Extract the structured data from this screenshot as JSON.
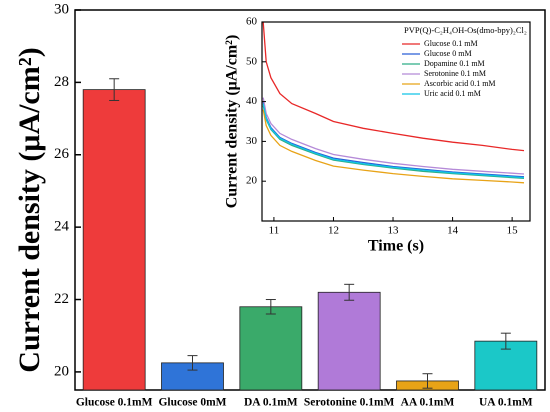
{
  "chart_data": [
    {
      "type": "bar",
      "y_label": "Current density (μA/cm²)",
      "categories": [
        "Glucose 0.1mM",
        "Glucose 0mM",
        "DA 0.1mM",
        "Serotonine 0.1mM",
        "AA 0.1mM",
        "UA 0.1mM"
      ],
      "values": [
        27.8,
        20.25,
        21.8,
        22.2,
        19.75,
        20.85
      ],
      "errors": [
        0.3,
        0.2,
        0.2,
        0.22,
        0.2,
        0.22
      ],
      "colors": [
        "#ee3b3b",
        "#2f74d8",
        "#3aaa6a",
        "#b07ad8",
        "#e8a317",
        "#1bc8c8"
      ],
      "ylim": [
        19.5,
        30
      ],
      "yticks": [
        20,
        22,
        24,
        26,
        28,
        30
      ]
    },
    {
      "type": "line",
      "legend_title": "PVP(Q)-C₂H₄OH-Os(dmo-bpy)₂Cl₂",
      "x_label": "Time (s)",
      "y_label": "Current density (μA/cm²)",
      "x": [
        10.82,
        10.87,
        10.95,
        11.1,
        11.3,
        11.7,
        12,
        12.5,
        13,
        13.5,
        14,
        14.5,
        15,
        15.2
      ],
      "series": [
        {
          "name": "Glucose 0.1 mM",
          "color": "#e82828",
          "values": [
            60,
            50,
            46,
            42,
            39.5,
            37,
            35,
            33.3,
            32,
            30.8,
            29.8,
            29,
            28,
            27.7
          ]
        },
        {
          "name": "Glucose 0 mM",
          "color": "#2a5fd6",
          "values": [
            40,
            36,
            33.5,
            31,
            29.5,
            27.2,
            25.8,
            24.7,
            23.7,
            23,
            22.3,
            21.8,
            21.3,
            21.1
          ]
        },
        {
          "name": "Dopamine 0.1 mM",
          "color": "#2fae86",
          "values": [
            39,
            35.5,
            33,
            30.5,
            29,
            26.8,
            25.3,
            24.2,
            23.3,
            22.5,
            21.9,
            21.4,
            20.9,
            20.7
          ]
        },
        {
          "name": "Serotonine 0.1 mM",
          "color": "#b58ad8",
          "values": [
            41,
            37,
            34.5,
            32,
            30.5,
            28.2,
            26.7,
            25.5,
            24.5,
            23.7,
            23,
            22.5,
            22,
            21.8
          ]
        },
        {
          "name": "Ascorbic acid 0.1 mM",
          "color": "#e8a317",
          "values": [
            38,
            34,
            31.5,
            29,
            27.5,
            25.2,
            23.8,
            22.8,
            21.9,
            21.2,
            20.6,
            20.2,
            19.8,
            19.6
          ]
        },
        {
          "name": "Uric acid 0.1 mM",
          "color": "#12c4e6",
          "values": [
            39.5,
            35.8,
            33.2,
            30.8,
            29.3,
            27,
            25.5,
            24.4,
            23.5,
            22.8,
            22.1,
            21.6,
            21.1,
            20.9
          ]
        }
      ],
      "xlim": [
        10.8,
        15.3
      ],
      "xticks": [
        11,
        12,
        13,
        14,
        15
      ],
      "ylim": [
        10,
        60
      ],
      "yticks": [
        20,
        30,
        40,
        50,
        60
      ]
    }
  ]
}
